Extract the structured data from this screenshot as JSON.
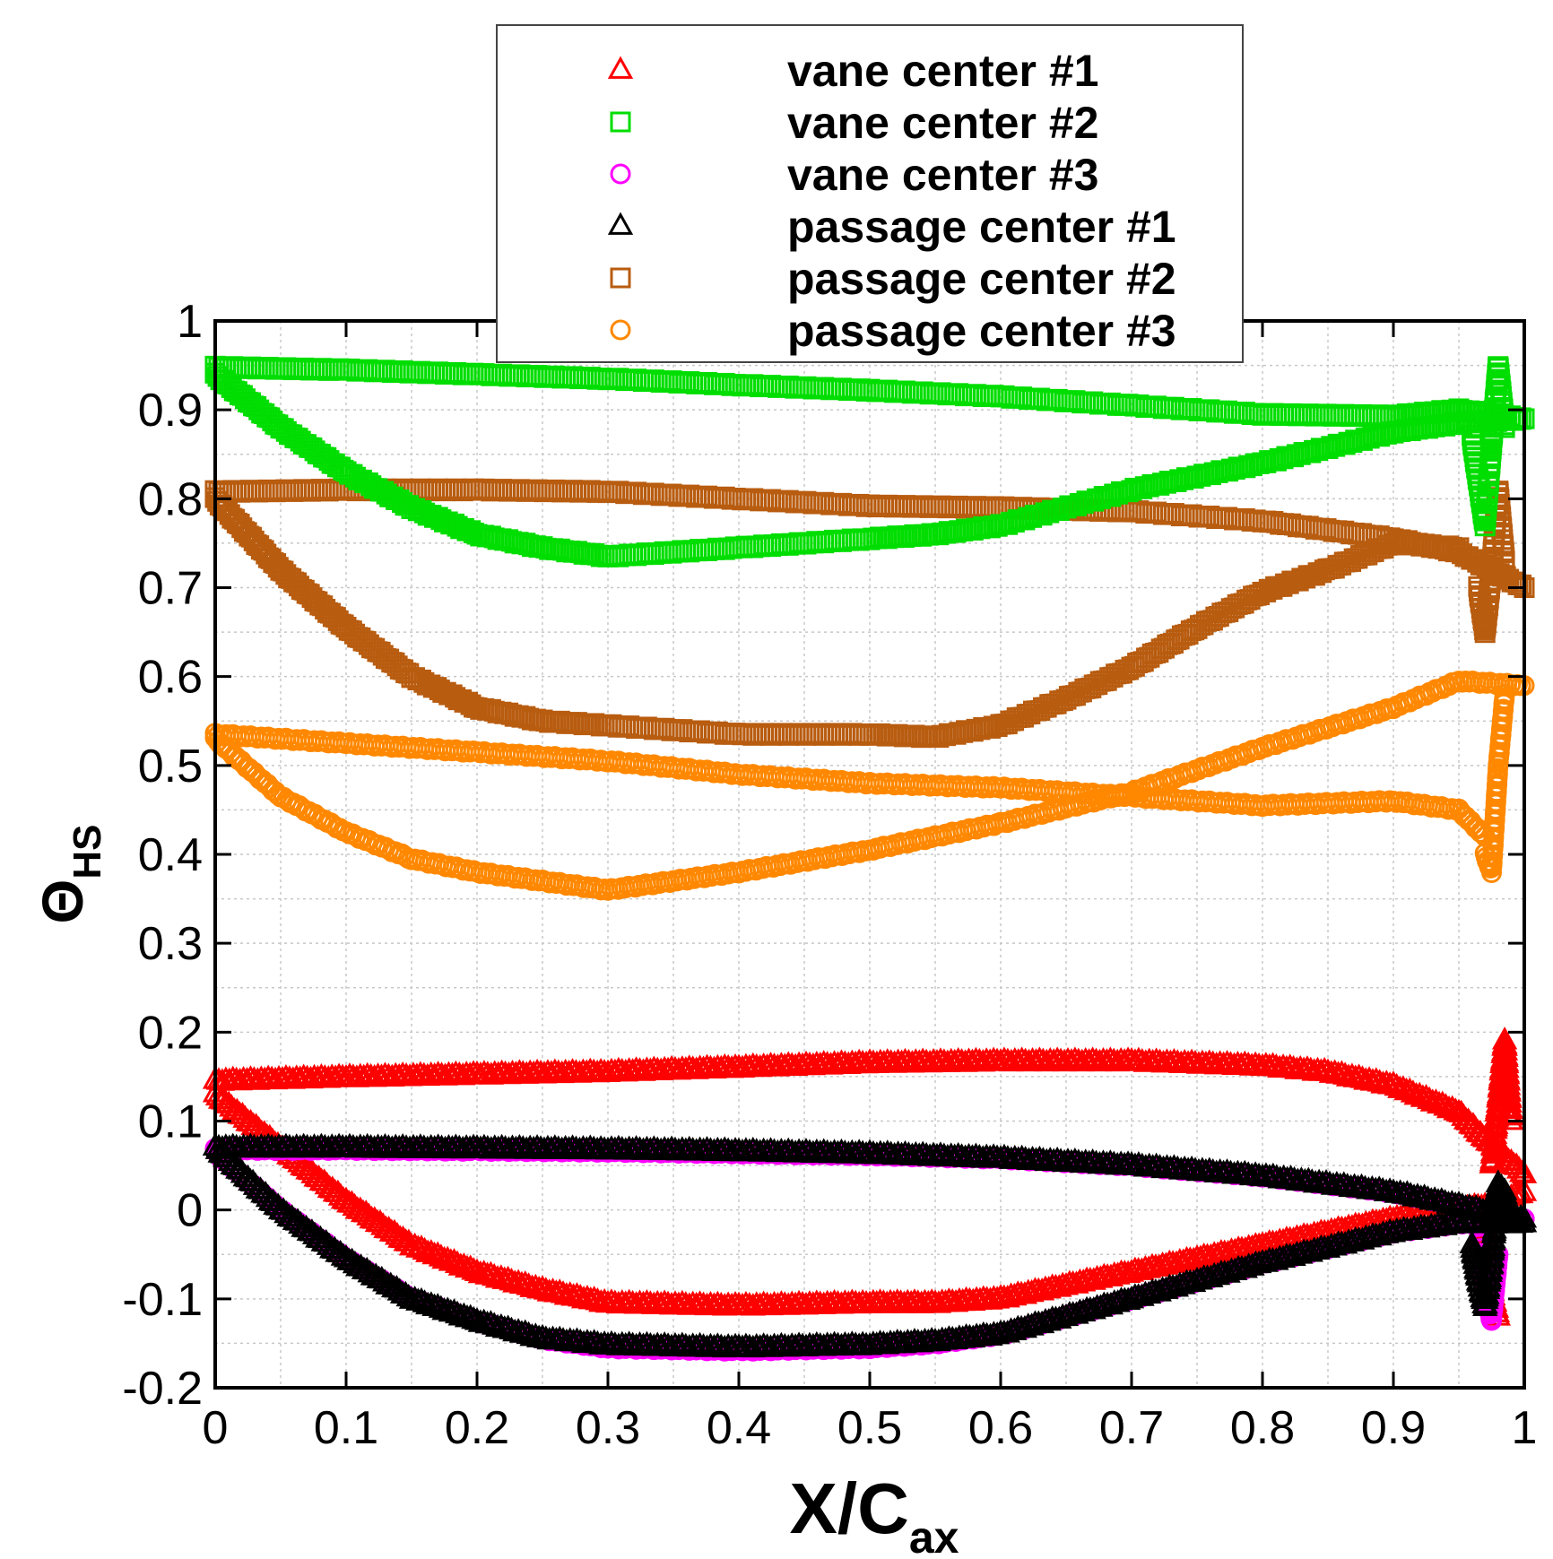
{
  "chart_data": {
    "type": "scatter",
    "title": "",
    "xlabel": {
      "main": "X/C",
      "sub": "ax"
    },
    "ylabel": {
      "main": "Θ",
      "sub": "HS"
    },
    "xlim": [
      0,
      1
    ],
    "ylim": [
      -0.2,
      1
    ],
    "xticks": [
      0,
      0.1,
      0.2,
      0.3,
      0.4,
      0.5,
      0.6,
      0.7,
      0.8,
      0.9,
      1
    ],
    "yticks": [
      -0.2,
      -0.1,
      0,
      0.1,
      0.2,
      0.3,
      0.4,
      0.5,
      0.6,
      0.7,
      0.8,
      0.9,
      1
    ],
    "xtick_labels": [
      "0",
      "0.1",
      "0.2",
      "0.3",
      "0.4",
      "0.5",
      "0.6",
      "0.7",
      "0.8",
      "0.9",
      "1"
    ],
    "ytick_labels": [
      "-0.2",
      "-0.1",
      "0",
      "0.1",
      "0.2",
      "0.3",
      "0.4",
      "0.5",
      "0.6",
      "0.7",
      "0.8",
      "0.9",
      "1"
    ],
    "grid": true,
    "legend_position": "top-center",
    "series": [
      {
        "name": "vane center #1",
        "marker": "triangle",
        "color": "#ff0000",
        "curves": [
          {
            "x": [
              0,
              0.1,
              0.2,
              0.3,
              0.4,
              0.5,
              0.6,
              0.7,
              0.8,
              0.85,
              0.9,
              0.95,
              0.97,
              1.0
            ],
            "y": [
              0.145,
              0.149,
              0.152,
              0.155,
              0.16,
              0.165,
              0.167,
              0.167,
              0.162,
              0.155,
              0.14,
              0.11,
              0.08,
              0.04
            ]
          },
          {
            "x": [
              0,
              0.05,
              0.1,
              0.15,
              0.2,
              0.25,
              0.3,
              0.4,
              0.5,
              0.55,
              0.6,
              0.7,
              0.8,
              0.9,
              0.97,
              1.0
            ],
            "y": [
              0.13,
              0.07,
              0.01,
              -0.04,
              -0.07,
              -0.09,
              -0.105,
              -0.108,
              -0.105,
              -0.105,
              -0.1,
              -0.07,
              -0.04,
              -0.01,
              0.005,
              0.02
            ]
          },
          {
            "x": [
              0.975,
              0.98,
              0.985,
              0.99
            ],
            "y": [
              0.05,
              0.12,
              0.19,
              0.1
            ]
          },
          {
            "x": [
              0.97,
              0.975,
              0.98
            ],
            "y": [
              -0.02,
              -0.09,
              -0.12
            ]
          }
        ]
      },
      {
        "name": "vane center #2",
        "marker": "square",
        "color": "#00dd00",
        "curves": [
          {
            "x": [
              0,
              0.1,
              0.2,
              0.3,
              0.4,
              0.5,
              0.6,
              0.7,
              0.8,
              0.9,
              0.95,
              1.0
            ],
            "y": [
              0.948,
              0.945,
              0.94,
              0.935,
              0.928,
              0.922,
              0.915,
              0.905,
              0.895,
              0.893,
              0.9,
              0.89
            ]
          },
          {
            "x": [
              0,
              0.05,
              0.1,
              0.15,
              0.2,
              0.25,
              0.3,
              0.4,
              0.5,
              0.55,
              0.6,
              0.7,
              0.8,
              0.9,
              0.95,
              1.0
            ],
            "y": [
              0.94,
              0.88,
              0.83,
              0.79,
              0.76,
              0.745,
              0.735,
              0.745,
              0.755,
              0.76,
              0.77,
              0.81,
              0.84,
              0.875,
              0.885,
              0.89
            ]
          },
          {
            "x": [
              0.96,
              0.97,
              0.975,
              0.98,
              0.985
            ],
            "y": [
              0.87,
              0.77,
              0.86,
              0.95,
              0.88
            ]
          }
        ]
      },
      {
        "name": "vane center #3",
        "marker": "circle",
        "color": "#ff00ff",
        "curves": [
          {
            "x": [
              0,
              0.1,
              0.2,
              0.3,
              0.4,
              0.5,
              0.6,
              0.7,
              0.8,
              0.9,
              0.95,
              1.0
            ],
            "y": [
              0.068,
              0.068,
              0.067,
              0.066,
              0.064,
              0.062,
              0.058,
              0.05,
              0.038,
              0.02,
              0.005,
              -0.01
            ]
          },
          {
            "x": [
              0,
              0.05,
              0.1,
              0.15,
              0.2,
              0.25,
              0.3,
              0.4,
              0.5,
              0.55,
              0.6,
              0.7,
              0.8,
              0.9,
              0.95,
              1.0
            ],
            "y": [
              0.065,
              0.0,
              -0.055,
              -0.1,
              -0.125,
              -0.145,
              -0.155,
              -0.158,
              -0.155,
              -0.15,
              -0.14,
              -0.1,
              -0.06,
              -0.025,
              -0.015,
              -0.01
            ]
          },
          {
            "x": [
              0.965,
              0.97,
              0.975,
              0.98
            ],
            "y": [
              -0.02,
              -0.09,
              -0.125,
              -0.05
            ]
          }
        ]
      },
      {
        "name": "passage center #1",
        "marker": "triangle",
        "color": "#000000",
        "curves": [
          {
            "x": [
              0,
              0.1,
              0.2,
              0.3,
              0.4,
              0.5,
              0.6,
              0.7,
              0.8,
              0.9,
              0.95,
              1.0
            ],
            "y": [
              0.07,
              0.07,
              0.069,
              0.068,
              0.066,
              0.063,
              0.058,
              0.05,
              0.038,
              0.02,
              0.005,
              -0.01
            ]
          },
          {
            "x": [
              0,
              0.05,
              0.1,
              0.15,
              0.2,
              0.25,
              0.3,
              0.4,
              0.5,
              0.55,
              0.6,
              0.7,
              0.8,
              0.9,
              0.95,
              1.0
            ],
            "y": [
              0.07,
              0.0,
              -0.055,
              -0.1,
              -0.125,
              -0.145,
              -0.152,
              -0.155,
              -0.152,
              -0.148,
              -0.14,
              -0.1,
              -0.06,
              -0.025,
              -0.015,
              -0.015
            ]
          },
          {
            "x": [
              0.96,
              0.965,
              0.97,
              0.975,
              0.98,
              0.985,
              0.99,
              1.0
            ],
            "y": [
              -0.04,
              -0.08,
              -0.11,
              -0.06,
              0.03,
              0.02,
              -0.01,
              -0.015
            ]
          }
        ]
      },
      {
        "name": "passage center #2",
        "marker": "square",
        "color": "#b85c10",
        "curves": [
          {
            "x": [
              0,
              0.1,
              0.2,
              0.3,
              0.4,
              0.5,
              0.6,
              0.7,
              0.8,
              0.9,
              0.95,
              1.0
            ],
            "y": [
              0.808,
              0.81,
              0.81,
              0.808,
              0.8,
              0.792,
              0.79,
              0.786,
              0.775,
              0.755,
              0.74,
              0.7
            ]
          },
          {
            "x": [
              0,
              0.05,
              0.1,
              0.15,
              0.2,
              0.25,
              0.3,
              0.4,
              0.5,
              0.55,
              0.6,
              0.65,
              0.7,
              0.75,
              0.8,
              0.85,
              0.9,
              0.95
            ],
            "y": [
              0.8,
              0.72,
              0.655,
              0.6,
              0.565,
              0.55,
              0.545,
              0.535,
              0.535,
              0.532,
              0.545,
              0.575,
              0.61,
              0.655,
              0.695,
              0.72,
              0.75,
              0.745
            ]
          },
          {
            "x": [
              0.965,
              0.97,
              0.975,
              0.98,
              0.985
            ],
            "y": [
              0.7,
              0.65,
              0.72,
              0.81,
              0.73
            ]
          }
        ]
      },
      {
        "name": "passage center #3",
        "marker": "circle",
        "color": "#ff8800",
        "curves": [
          {
            "x": [
              0,
              0.1,
              0.2,
              0.3,
              0.4,
              0.5,
              0.6,
              0.7,
              0.8,
              0.9,
              0.95,
              0.97
            ],
            "y": [
              0.535,
              0.525,
              0.515,
              0.505,
              0.49,
              0.48,
              0.475,
              0.465,
              0.455,
              0.46,
              0.45,
              0.42
            ]
          },
          {
            "x": [
              0,
              0.05,
              0.1,
              0.15,
              0.2,
              0.25,
              0.3,
              0.35,
              0.4,
              0.5,
              0.6,
              0.7,
              0.8,
              0.9,
              0.95,
              1.0
            ],
            "y": [
              0.53,
              0.465,
              0.425,
              0.395,
              0.38,
              0.37,
              0.36,
              0.37,
              0.38,
              0.405,
              0.435,
              0.47,
              0.52,
              0.565,
              0.595,
              0.59
            ]
          },
          {
            "x": [
              0.97,
              0.975,
              0.98,
              0.985
            ],
            "y": [
              0.4,
              0.38,
              0.5,
              0.58
            ]
          }
        ]
      }
    ]
  }
}
